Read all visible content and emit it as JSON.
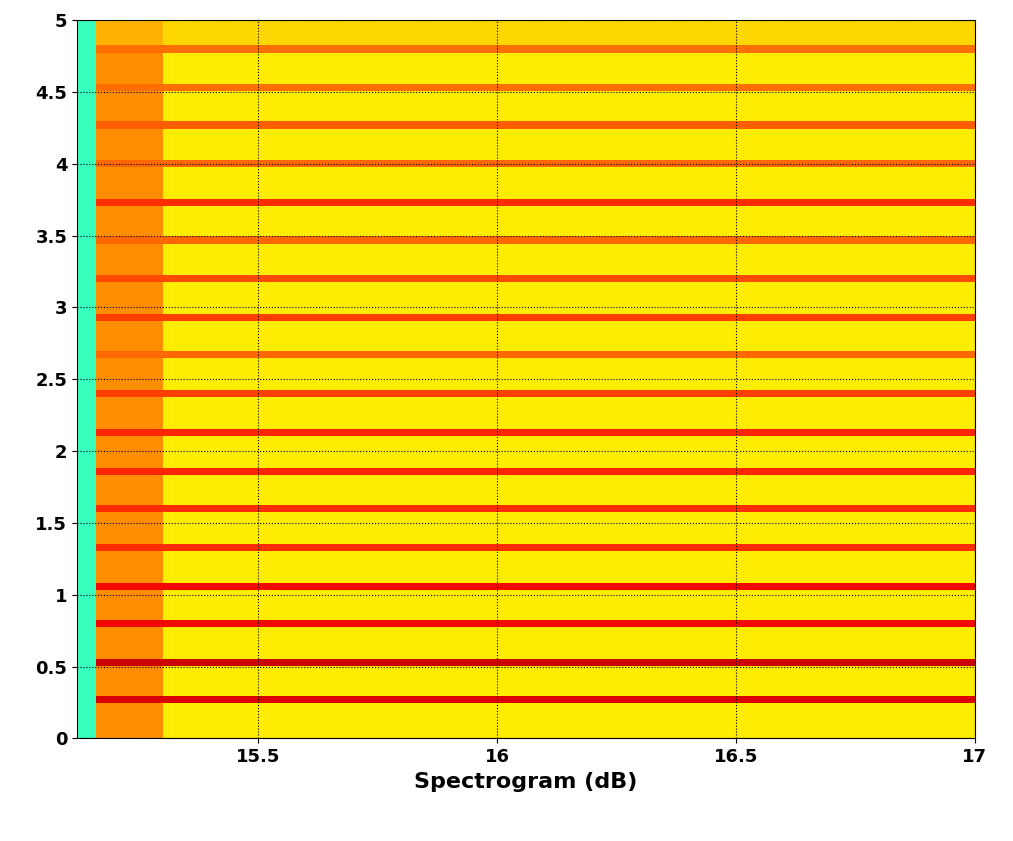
{
  "chart_data": {
    "type": "heatmap",
    "xlabel": "Spectrogram (dB)",
    "color": "jet",
    "color_range": [
      0,
      100
    ],
    "grid": true,
    "xlim": [
      15.12,
      17
    ],
    "xticks": [
      15.5,
      16,
      16.5,
      17
    ],
    "ylim": [
      0,
      5
    ],
    "yticks": [
      0,
      0.5,
      1,
      1.5,
      2,
      2.5,
      3,
      3.5,
      4,
      4.5,
      5
    ],
    "x_edges": [
      15.12,
      15.16,
      15.3,
      17
    ],
    "y_edges": [
      0,
      0.245,
      0.295,
      0.505,
      0.555,
      0.775,
      0.825,
      1.035,
      1.085,
      1.305,
      1.355,
      1.575,
      1.625,
      1.835,
      1.885,
      2.105,
      2.155,
      2.375,
      2.425,
      2.645,
      2.695,
      2.905,
      2.955,
      3.175,
      3.225,
      3.445,
      3.495,
      3.705,
      3.755,
      3.975,
      4.025,
      4.245,
      4.295,
      4.505,
      4.555,
      4.775,
      4.825,
      5
    ],
    "cells": [
      [
        42,
        76,
        66
      ],
      [
        42,
        92,
        92
      ],
      [
        42,
        76,
        66
      ],
      [
        42,
        93,
        93
      ],
      [
        42,
        76,
        66
      ],
      [
        42,
        90,
        90
      ],
      [
        42,
        76,
        66
      ],
      [
        42,
        90,
        90
      ],
      [
        42,
        76,
        66
      ],
      [
        42,
        86,
        86
      ],
      [
        42,
        76,
        66
      ],
      [
        42,
        86,
        86
      ],
      [
        42,
        76,
        66
      ],
      [
        42,
        87,
        87
      ],
      [
        42,
        76,
        66
      ],
      [
        42,
        87,
        87
      ],
      [
        42,
        76,
        66
      ],
      [
        42,
        84,
        84
      ],
      [
        42,
        76,
        66
      ],
      [
        42,
        80,
        80
      ],
      [
        42,
        76,
        66
      ],
      [
        42,
        84,
        84
      ],
      [
        42,
        76,
        66
      ],
      [
        42,
        83,
        83
      ],
      [
        42,
        76,
        66
      ],
      [
        42,
        80,
        80
      ],
      [
        42,
        76,
        66
      ],
      [
        42,
        86,
        86
      ],
      [
        42,
        76,
        66
      ],
      [
        42,
        80,
        80
      ],
      [
        42,
        76,
        66
      ],
      [
        42,
        81,
        81
      ],
      [
        42,
        76,
        66
      ],
      [
        42,
        79,
        79
      ],
      [
        42,
        76,
        66
      ],
      [
        42,
        79,
        79
      ],
      [
        42,
        72,
        68
      ]
    ]
  }
}
